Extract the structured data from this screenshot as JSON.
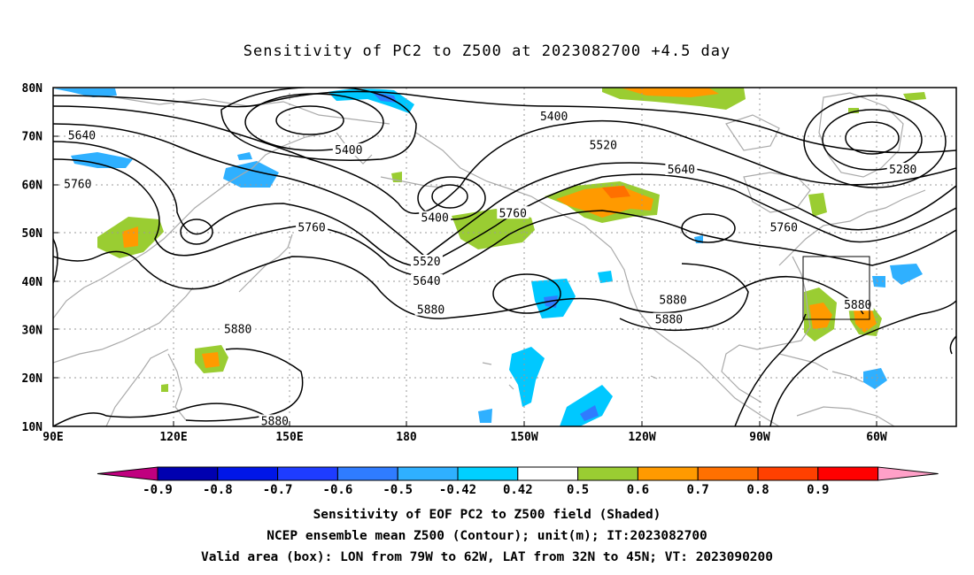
{
  "title": "Sensitivity of PC2 to Z500 at 2023082700 +4.5 day",
  "map": {
    "lat_labels": [
      "80N",
      "70N",
      "60N",
      "50N",
      "40N",
      "30N",
      "20N",
      "10N"
    ],
    "lon_labels": [
      "90E",
      "120E",
      "150E",
      "180",
      "150W",
      "120W",
      "90W",
      "60W"
    ],
    "lon_range": [
      "90E",
      "50W"
    ],
    "lat_range": [
      "10N",
      "80N"
    ],
    "gridlines": true,
    "coastline_color": "#aaaaaa",
    "contour_color": "#000000"
  },
  "contour_labels": [
    {
      "text": "5400",
      "lon": -148,
      "lat": 74
    },
    {
      "text": "5400",
      "lon": 162,
      "lat": 67
    },
    {
      "text": "5400",
      "lon": -177,
      "lat": 53
    },
    {
      "text": "5520",
      "lon": -136,
      "lat": 68
    },
    {
      "text": "5520",
      "lon": -179,
      "lat": 44
    },
    {
      "text": "5640",
      "lon": 97,
      "lat": 70
    },
    {
      "text": "5640",
      "lon": -179,
      "lat": 40
    },
    {
      "text": "5640",
      "lon": -117,
      "lat": 63
    },
    {
      "text": "5760",
      "lon": 96,
      "lat": 60
    },
    {
      "text": "5760",
      "lon": 153,
      "lat": 51
    },
    {
      "text": "5760",
      "lon": -158,
      "lat": 54
    },
    {
      "text": "5760",
      "lon": -92,
      "lat": 51
    },
    {
      "text": "5880",
      "lon": 135,
      "lat": 30
    },
    {
      "text": "5880",
      "lon": -178,
      "lat": 34
    },
    {
      "text": "5880",
      "lon": -119,
      "lat": 36
    },
    {
      "text": "5880",
      "lon": -120,
      "lat": 32
    },
    {
      "text": "5880",
      "lon": -74,
      "lat": 35
    },
    {
      "text": "5880",
      "lon": 144,
      "lat": 11
    },
    {
      "text": "5280",
      "lon": -63,
      "lat": 63
    }
  ],
  "valid_box": {
    "lon_min": "79W",
    "lon_max": "62W",
    "lat_min": "32N",
    "lat_max": "45N"
  },
  "colorbar": {
    "labels": [
      "-0.9",
      "-0.8",
      "-0.7",
      "-0.6",
      "-0.5",
      "-0.42",
      "0.42",
      "0.5",
      "0.6",
      "0.7",
      "0.8",
      "0.9"
    ],
    "colors": [
      "#c0007f",
      "#0000b0",
      "#0016e8",
      "#1e3cff",
      "#2f7cff",
      "#2fb0ff",
      "#00d0ff",
      "#ffffff",
      "#9acd32",
      "#ff9a00",
      "#ff7000",
      "#ff4000",
      "#ff0000",
      "#ffa0c8"
    ]
  },
  "captions": [
    "Sensitivity of EOF PC2 to Z500 field (Shaded)",
    "NCEP ensemble mean Z500 (Contour); unit(m); IT:2023082700",
    "Valid area (box): LON from 79W to 62W, LAT from 32N to 45N; VT: 2023090200"
  ]
}
